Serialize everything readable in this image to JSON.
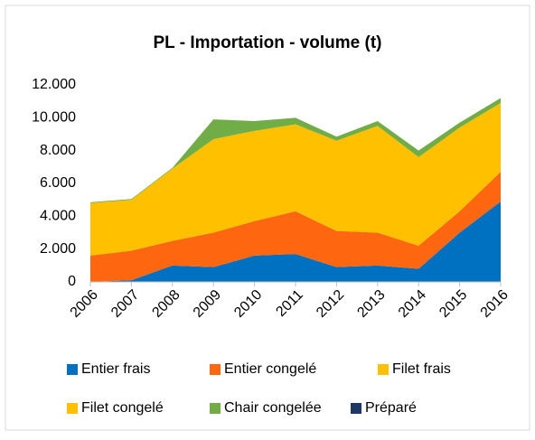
{
  "chart_data": {
    "type": "stacked-area",
    "title": "PL - Importation - volume (t)",
    "categories": [
      "2006",
      "2007",
      "2008",
      "2009",
      "2010",
      "2011",
      "2012",
      "2013",
      "2014",
      "2015",
      "2016"
    ],
    "series": [
      {
        "name": "Entier frais",
        "color": "#0070c0",
        "values": [
          0,
          100,
          1000,
          900,
          1600,
          1700,
          900,
          1000,
          800,
          3000,
          4900
        ]
      },
      {
        "name": "Entier congelé",
        "color": "#ff6610",
        "values": [
          1600,
          1800,
          1500,
          2100,
          2100,
          2600,
          2200,
          2000,
          1400,
          1300,
          1800
        ]
      },
      {
        "name": "Filet frais",
        "color": "#ffc000",
        "values": [
          3200,
          3100,
          4400,
          5700,
          5500,
          5300,
          5500,
          6500,
          5400,
          5100,
          4200
        ]
      },
      {
        "name": "Filet congelé",
        "color": "#ffc000",
        "values": [
          0,
          0,
          0,
          0,
          0,
          0,
          0,
          0,
          0,
          0,
          0
        ]
      },
      {
        "name": "Chair congelée",
        "color": "#70ad47",
        "values": [
          50,
          50,
          50,
          1200,
          600,
          400,
          250,
          300,
          400,
          300,
          300
        ]
      },
      {
        "name": "Préparé",
        "color": "#1f3864",
        "values": [
          0,
          0,
          0,
          0,
          0,
          0,
          0,
          0,
          0,
          0,
          0
        ]
      }
    ],
    "ylim": [
      0,
      12000
    ],
    "yticks": [
      0,
      {
        "value": 2000,
        "label": "2.000"
      },
      {
        "value": 4000,
        "label": "4.000"
      },
      {
        "value": 6000,
        "label": "6.000"
      },
      {
        "value": 8000,
        "label": "8.000"
      },
      {
        "value": 10000,
        "label": "10.000"
      },
      {
        "value": 12000,
        "label": "12.000"
      }
    ],
    "grid": false
  }
}
